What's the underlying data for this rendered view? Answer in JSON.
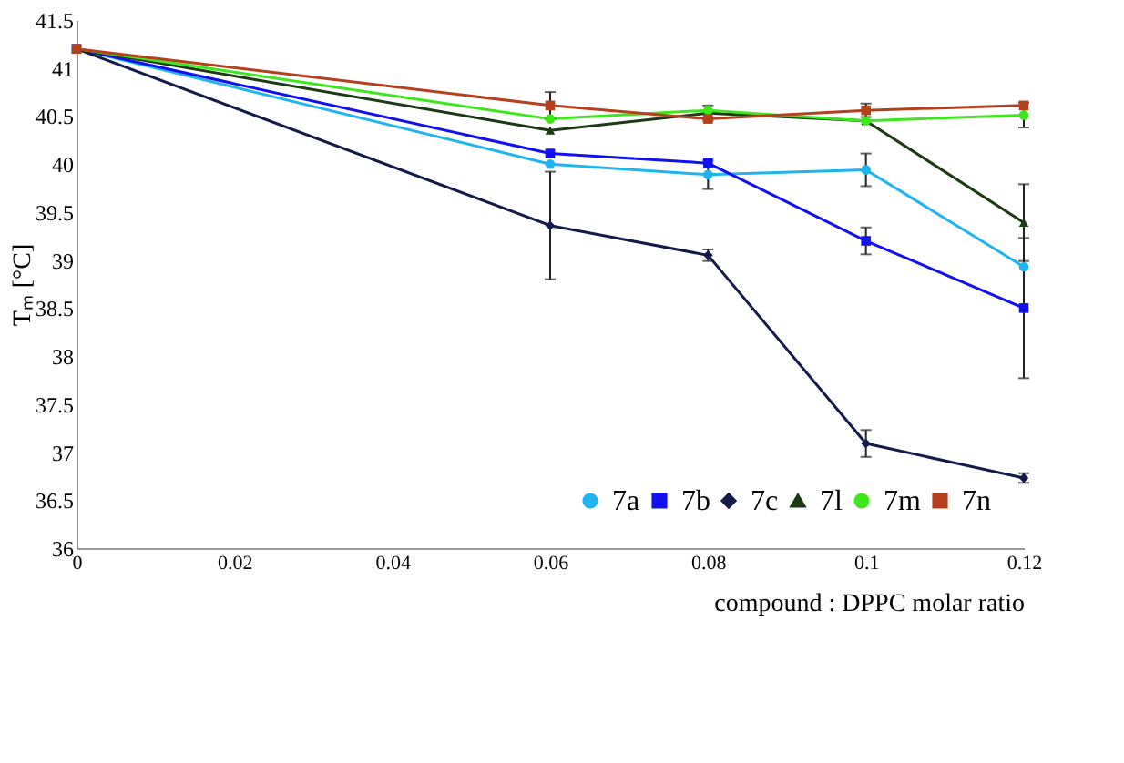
{
  "chart_data": {
    "type": "line",
    "xlabel": "compound : DPPC molar ratio",
    "ylabel": "Tₘ [°C]",
    "x": [
      0,
      0.06,
      0.08,
      0.1,
      0.12
    ],
    "xlim": [
      0,
      0.12
    ],
    "xticks": [
      0,
      0.02,
      0.04,
      0.06,
      0.08,
      0.1,
      0.12
    ],
    "ylim": [
      36,
      41.5
    ],
    "yticks": [
      36,
      36.5,
      37,
      37.5,
      38,
      38.5,
      39,
      39.5,
      40,
      40.5,
      41,
      41.5
    ],
    "grid": false,
    "legend": "bottom right",
    "line_style": "solid",
    "series": [
      {
        "name": "7a",
        "color": "#1fb4f0",
        "marker": "circle",
        "values": [
          41.2,
          40.0,
          39.89,
          39.94,
          38.93
        ],
        "errors": [
          null,
          null,
          0.15,
          0.17,
          null
        ]
      },
      {
        "name": "7b",
        "color": "#1010f0",
        "marker": "square",
        "values": [
          41.2,
          40.11,
          40.01,
          39.2,
          38.5
        ],
        "errors": [
          null,
          null,
          null,
          0.14,
          0.73
        ]
      },
      {
        "name": "7c",
        "color": "#141a4a",
        "marker": "diamond",
        "values": [
          41.2,
          39.36,
          39.05,
          37.09,
          36.73
        ],
        "errors": [
          null,
          0.56,
          0.06,
          0.14,
          0.05
        ]
      },
      {
        "name": "7l",
        "color": "#1c3a14",
        "marker": "triangle",
        "values": [
          41.2,
          40.35,
          40.53,
          40.45,
          39.39
        ],
        "errors": [
          null,
          null,
          0.08,
          null,
          0.4
        ]
      },
      {
        "name": "7m",
        "color": "#3ce81c",
        "marker": "circle",
        "values": [
          41.2,
          40.47,
          40.56,
          40.45,
          40.51
        ],
        "errors": [
          null,
          null,
          null,
          null,
          0.13
        ]
      },
      {
        "name": "7n",
        "color": "#b4401c",
        "marker": "square",
        "values": [
          41.2,
          40.61,
          40.47,
          40.56,
          40.61
        ],
        "errors": [
          null,
          0.14,
          null,
          0.07,
          null
        ]
      }
    ]
  }
}
